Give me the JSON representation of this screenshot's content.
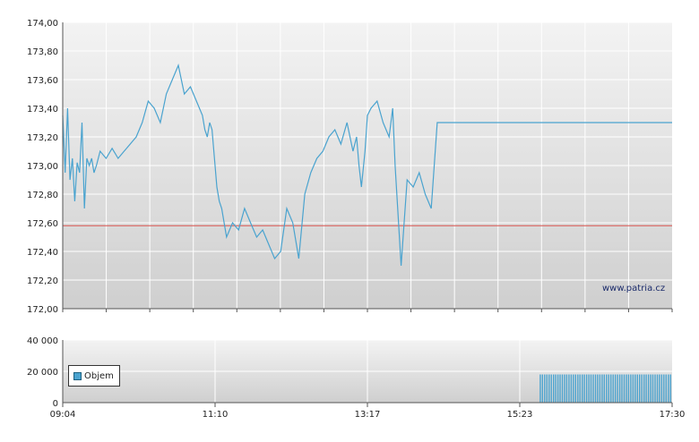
{
  "chart_data": [
    {
      "type": "line",
      "title": "",
      "xlabel": "",
      "ylabel": "",
      "ylim": [
        172.0,
        174.0
      ],
      "y_ticks": [
        "174,00",
        "173,80",
        "173,60",
        "173,40",
        "173,20",
        "173,00",
        "172,80",
        "172,60",
        "172,40",
        "172,20",
        "172,00"
      ],
      "reference_line": 172.58,
      "colors": {
        "line": "#4aa3cf",
        "reference": "#d9534f"
      },
      "series": [
        {
          "x": [
            "09:04",
            "09:06",
            "09:08",
            "09:10",
            "09:12",
            "09:14",
            "09:16",
            "09:18",
            "09:20",
            "09:22",
            "09:24",
            "09:26",
            "09:28",
            "09:30",
            "09:32",
            "09:35",
            "09:40",
            "09:45",
            "09:50",
            "09:55",
            "10:00",
            "10:05",
            "10:10",
            "10:15",
            "10:20",
            "10:25",
            "10:30",
            "10:35",
            "10:40",
            "10:45",
            "10:50",
            "10:55",
            "11:00",
            "11:02",
            "11:04",
            "11:06",
            "11:08",
            "11:10",
            "11:12",
            "11:14",
            "11:16",
            "11:18",
            "11:20",
            "11:25",
            "11:30",
            "11:35",
            "11:40",
            "11:45",
            "11:50",
            "11:55",
            "12:00",
            "12:05",
            "12:10",
            "12:15",
            "12:20",
            "12:25",
            "12:30",
            "12:35",
            "12:40",
            "12:45",
            "12:50",
            "12:55",
            "13:00",
            "13:05",
            "13:08",
            "13:10",
            "13:12",
            "13:15",
            "13:17",
            "13:20",
            "13:25",
            "13:30",
            "13:35",
            "13:38",
            "13:40",
            "13:45",
            "13:50",
            "13:55",
            "14:00",
            "14:05",
            "14:10",
            "14:15",
            "14:20",
            "14:25",
            "14:30",
            "14:35",
            "14:40",
            "14:45",
            "14:50",
            "14:55",
            "15:00",
            "15:05",
            "15:10",
            "15:15",
            "15:18",
            "15:20",
            "15:22",
            "15:23",
            "15:25",
            "15:27",
            "15:30",
            "15:33",
            "15:35",
            "15:37",
            "15:40",
            "16:00",
            "16:30",
            "17:00",
            "17:30"
          ],
          "values": [
            173.35,
            172.95,
            173.4,
            172.9,
            173.05,
            172.75,
            173.02,
            172.95,
            173.3,
            172.7,
            173.05,
            173.0,
            173.05,
            172.95,
            173.0,
            173.1,
            173.05,
            173.12,
            173.05,
            173.1,
            173.15,
            173.2,
            173.3,
            173.45,
            173.4,
            173.3,
            173.5,
            173.6,
            173.7,
            173.5,
            173.55,
            173.45,
            173.35,
            173.25,
            173.2,
            173.3,
            173.25,
            173.05,
            172.85,
            172.75,
            172.7,
            172.6,
            172.5,
            172.6,
            172.55,
            172.7,
            172.6,
            172.5,
            172.55,
            172.45,
            172.35,
            172.4,
            172.7,
            172.6,
            172.35,
            172.8,
            172.95,
            173.05,
            173.1,
            173.2,
            173.25,
            173.15,
            173.3,
            173.1,
            173.2,
            173.0,
            172.85,
            173.1,
            173.35,
            173.4,
            173.45,
            173.3,
            173.2,
            173.4,
            173.0,
            172.3,
            172.9,
            172.85,
            172.95,
            172.8,
            172.7,
            173.3,
            173.3,
            173.3,
            173.3,
            173.3,
            173.3,
            173.3,
            173.3,
            173.3,
            173.3,
            173.3,
            173.3,
            173.3,
            173.3,
            173.3,
            173.3,
            173.3,
            173.3,
            173.3,
            173.3,
            173.3,
            173.3,
            173.3,
            173.3,
            173.3,
            173.3,
            173.3,
            173.3
          ]
        }
      ]
    },
    {
      "type": "bar",
      "title": "",
      "xlabel": "",
      "ylabel": "",
      "ylim": [
        0,
        40000
      ],
      "y_ticks": [
        "40 000",
        "20 000",
        "0"
      ],
      "x_ticks": [
        "09:04",
        "11:10",
        "13:17",
        "15:23",
        "17:30"
      ],
      "legend": "Objem",
      "series": [
        {
          "name": "Objem",
          "x_start": "15:40",
          "x_end": "17:30",
          "bar_count": 60,
          "bar_value": 18000
        }
      ]
    }
  ],
  "watermark": "www.patria.cz"
}
